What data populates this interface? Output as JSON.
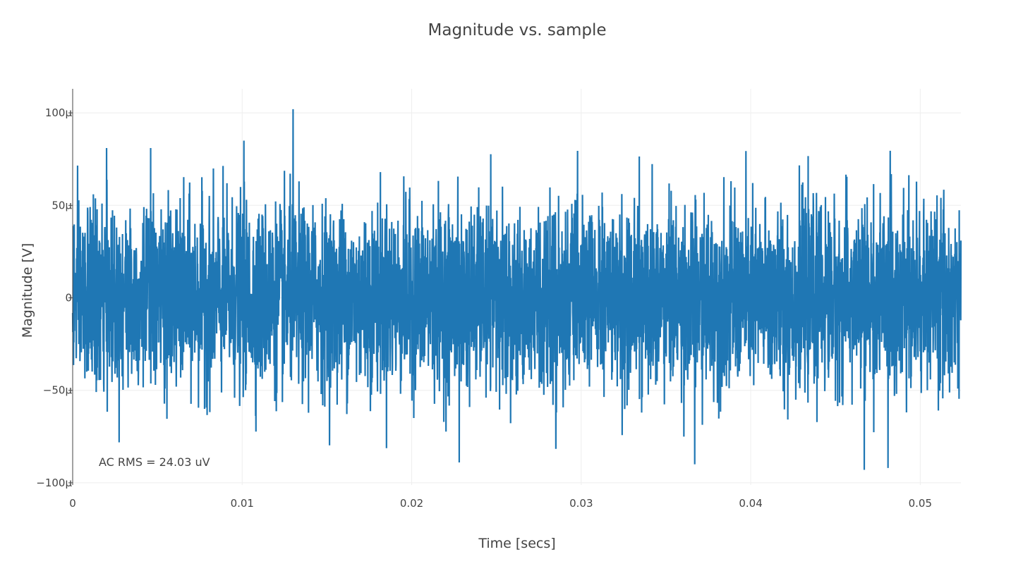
{
  "chart_data": {
    "type": "line",
    "title": "Magnitude vs. sample",
    "xlabel": "Time [secs]",
    "ylabel": "Magnitude [V]",
    "xlim": [
      0,
      0.0524
    ],
    "ylim": [
      -0.000105,
      0.000113
    ],
    "x_ticks": [
      {
        "value": 0,
        "label": "0"
      },
      {
        "value": 0.01,
        "label": "0.01"
      },
      {
        "value": 0.02,
        "label": "0.02"
      },
      {
        "value": 0.03,
        "label": "0.03"
      },
      {
        "value": 0.04,
        "label": "0.04"
      },
      {
        "value": 0.05,
        "label": "0.05"
      }
    ],
    "y_ticks": [
      {
        "value": 0.0001,
        "label": "100μ"
      },
      {
        "value": 5e-05,
        "label": "50μ"
      },
      {
        "value": 0,
        "label": "0"
      },
      {
        "value": -5e-05,
        "label": "−50μ"
      },
      {
        "value": -0.0001,
        "label": "−100μ"
      }
    ],
    "grid": true,
    "series_color": "#1f77b4",
    "series": [
      {
        "x_start": 0,
        "x_end": 0.0524,
        "num_samples": 5240,
        "description": "noise signal",
        "rms": 2.403e-05,
        "peaks": [
          {
            "x": 0.013,
            "y": 0.000102
          },
          {
            "x": 0.0101,
            "y": 8.5e-05
          },
          {
            "x": 0.002,
            "y": 8.1e-05
          },
          {
            "x": 0.0046,
            "y": 8.1e-05
          },
          {
            "x": 0.0467,
            "y": -9.3e-05
          },
          {
            "x": 0.0481,
            "y": -9.2e-05
          },
          {
            "x": 0.0367,
            "y": -9e-05
          },
          {
            "x": 0.0228,
            "y": -8.9e-05
          }
        ]
      }
    ],
    "annotations": [
      {
        "text": "AC RMS = 24.03 uV",
        "x": 0.0016,
        "y": -8.8e-05
      }
    ]
  }
}
